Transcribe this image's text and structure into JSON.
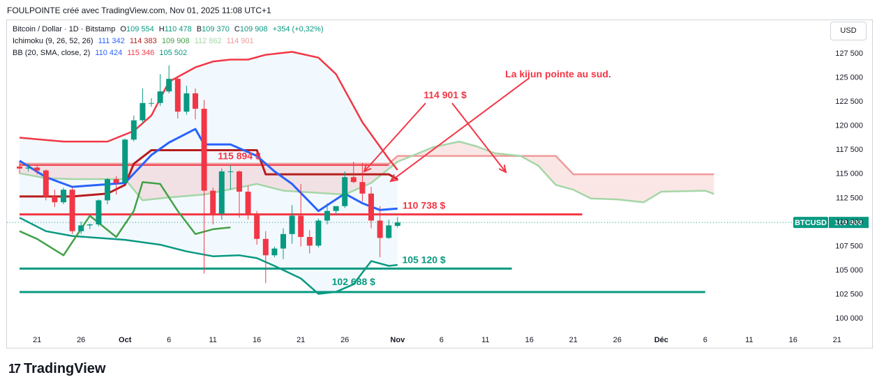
{
  "header": {
    "title": "FOULPOINTE créé avec TradingView.com, Nov 01, 2025 11:08 UTC+1"
  },
  "legend": {
    "symbol": "Bitcoin / Dollar · 1D · Bitstamp",
    "o_label": "O",
    "o_value": "109 554",
    "h_label": "H",
    "h_value": "110 478",
    "b_label": "B",
    "b_value": "109 370",
    "c_label": "C",
    "c_value": "109 908",
    "change": "+354 (+0,32%)",
    "ichimoku_label": "Ichimoku (9, 26, 52, 26)",
    "ichimoku_values": [
      "111 342",
      "114 383",
      "109 908",
      "112 862",
      "114 901"
    ],
    "bb_label": "BB (20, SMA, close, 2)",
    "bb_values": [
      "110 424",
      "115 346",
      "105 502"
    ]
  },
  "currency_button": "USD",
  "brand": {
    "mark": "17",
    "name": "TradingView"
  },
  "colors": {
    "up": "#089981",
    "down": "#f23645",
    "tenkan": "#2962ff",
    "kijun": "#b71c1c",
    "span_a": "#a5d6a7",
    "span_b": "#ef9a9a",
    "bb_upper": "#f23645",
    "bb_lower": "#089981",
    "bb_fill": "#2196f3",
    "chikou": "#43a047",
    "annotation_red": "#f23645",
    "annotation_green": "#089981"
  },
  "chart_data": {
    "type": "candlestick",
    "x_ticks": [
      "21",
      "26",
      "Oct",
      "6",
      "11",
      "16",
      "21",
      "26",
      "Nov",
      "6",
      "11",
      "16",
      "21",
      "26",
      "Déc",
      "6",
      "11",
      "16",
      "21"
    ],
    "y_ticks": [
      "127 500",
      "125 000",
      "122 500",
      "120 000",
      "117 500",
      "115 000",
      "112 500",
      "110 000",
      "107 500",
      "105 000",
      "102 500",
      "100 000"
    ],
    "ylim": [
      99000,
      128500
    ],
    "x_start": "2025-09-19",
    "candles": [
      {
        "date": "2025-09-19",
        "o": 115700,
        "h": 116200,
        "l": 115000,
        "c": 115500
      },
      {
        "date": "2025-09-20",
        "o": 115500,
        "h": 116000,
        "l": 115200,
        "c": 115600
      },
      {
        "date": "2025-09-21",
        "o": 115600,
        "h": 115800,
        "l": 114900,
        "c": 115300
      },
      {
        "date": "2025-09-22",
        "o": 115300,
        "h": 115400,
        "l": 112200,
        "c": 112600
      },
      {
        "date": "2025-09-23",
        "o": 112600,
        "h": 113300,
        "l": 111500,
        "c": 112000
      },
      {
        "date": "2025-09-24",
        "o": 112000,
        "h": 113500,
        "l": 111800,
        "c": 113300
      },
      {
        "date": "2025-09-25",
        "o": 113300,
        "h": 113500,
        "l": 108700,
        "c": 109000
      },
      {
        "date": "2025-09-26",
        "o": 109000,
        "h": 110000,
        "l": 108700,
        "c": 109600
      },
      {
        "date": "2025-09-27",
        "o": 109600,
        "h": 109800,
        "l": 109200,
        "c": 109700
      },
      {
        "date": "2025-09-28",
        "o": 109700,
        "h": 112300,
        "l": 109500,
        "c": 112200
      },
      {
        "date": "2025-09-29",
        "o": 112200,
        "h": 114500,
        "l": 111800,
        "c": 114400
      },
      {
        "date": "2025-09-30",
        "o": 114400,
        "h": 114700,
        "l": 112800,
        "c": 114000
      },
      {
        "date": "2025-10-01",
        "o": 114000,
        "h": 118600,
        "l": 113900,
        "c": 118500
      },
      {
        "date": "2025-10-02",
        "o": 118500,
        "h": 121000,
        "l": 118300,
        "c": 120500
      },
      {
        "date": "2025-10-03",
        "o": 120500,
        "h": 123800,
        "l": 120200,
        "c": 122300
      },
      {
        "date": "2025-10-04",
        "o": 122300,
        "h": 122800,
        "l": 121900,
        "c": 122300
      },
      {
        "date": "2025-10-05",
        "o": 122300,
        "h": 125300,
        "l": 122000,
        "c": 123500
      },
      {
        "date": "2025-10-06",
        "o": 123500,
        "h": 126200,
        "l": 123300,
        "c": 124800
      },
      {
        "date": "2025-10-07",
        "o": 124800,
        "h": 125000,
        "l": 120700,
        "c": 121400
      },
      {
        "date": "2025-10-08",
        "o": 121400,
        "h": 124100,
        "l": 121100,
        "c": 123300
      },
      {
        "date": "2025-10-09",
        "o": 123300,
        "h": 123800,
        "l": 120600,
        "c": 121700
      },
      {
        "date": "2025-10-10",
        "o": 121700,
        "h": 122600,
        "l": 104600,
        "c": 113200
      },
      {
        "date": "2025-10-11",
        "o": 113200,
        "h": 113500,
        "l": 109700,
        "c": 110800
      },
      {
        "date": "2025-10-12",
        "o": 110800,
        "h": 115500,
        "l": 110200,
        "c": 115200
      },
      {
        "date": "2025-10-13",
        "o": 115200,
        "h": 115800,
        "l": 113300,
        "c": 115200
      },
      {
        "date": "2025-10-14",
        "o": 115200,
        "h": 115300,
        "l": 110400,
        "c": 113100
      },
      {
        "date": "2025-10-15",
        "o": 113100,
        "h": 113700,
        "l": 110200,
        "c": 110800
      },
      {
        "date": "2025-10-16",
        "o": 110800,
        "h": 111100,
        "l": 107600,
        "c": 108200
      },
      {
        "date": "2025-10-17",
        "o": 108200,
        "h": 109000,
        "l": 103600,
        "c": 106500
      },
      {
        "date": "2025-10-18",
        "o": 106500,
        "h": 107400,
        "l": 106300,
        "c": 107200
      },
      {
        "date": "2025-10-19",
        "o": 107200,
        "h": 109300,
        "l": 106100,
        "c": 108700
      },
      {
        "date": "2025-10-20",
        "o": 108700,
        "h": 111700,
        "l": 107700,
        "c": 110600
      },
      {
        "date": "2025-10-21",
        "o": 110600,
        "h": 113900,
        "l": 107400,
        "c": 108400
      },
      {
        "date": "2025-10-22",
        "o": 108400,
        "h": 109100,
        "l": 106700,
        "c": 107500
      },
      {
        "date": "2025-10-23",
        "o": 107500,
        "h": 110300,
        "l": 107300,
        "c": 110100
      },
      {
        "date": "2025-10-24",
        "o": 110100,
        "h": 111900,
        "l": 109700,
        "c": 111100
      },
      {
        "date": "2025-10-25",
        "o": 111100,
        "h": 111500,
        "l": 110700,
        "c": 111600
      },
      {
        "date": "2025-10-26",
        "o": 111600,
        "h": 115200,
        "l": 111400,
        "c": 114600
      },
      {
        "date": "2025-10-27",
        "o": 114600,
        "h": 116200,
        "l": 114000,
        "c": 114100
      },
      {
        "date": "2025-10-28",
        "o": 114100,
        "h": 116100,
        "l": 112100,
        "c": 112900
      },
      {
        "date": "2025-10-29",
        "o": 112900,
        "h": 113600,
        "l": 109300,
        "c": 110100
      },
      {
        "date": "2025-10-30",
        "o": 110100,
        "h": 111600,
        "l": 106300,
        "c": 108300
      },
      {
        "date": "2025-10-31",
        "o": 108300,
        "h": 110200,
        "l": 108200,
        "c": 109600
      },
      {
        "date": "2025-11-01",
        "o": 109554,
        "h": 110478,
        "l": 109370,
        "c": 109908
      }
    ],
    "series": [
      {
        "name": "Conversion",
        "role": "tenkan",
        "points": [
          [
            "2025-09-19",
            116300
          ],
          [
            "2025-09-22",
            114600
          ],
          [
            "2025-09-25",
            113600
          ],
          [
            "2025-10-01",
            114000
          ],
          [
            "2025-10-04",
            116900
          ],
          [
            "2025-10-06",
            118200
          ],
          [
            "2025-10-09",
            119600
          ],
          [
            "2025-10-10",
            118000
          ],
          [
            "2025-10-13",
            118000
          ],
          [
            "2025-10-16",
            116800
          ],
          [
            "2025-10-18",
            115200
          ],
          [
            "2025-10-20",
            113900
          ],
          [
            "2025-10-23",
            111100
          ],
          [
            "2025-10-26",
            112900
          ],
          [
            "2025-10-28",
            111900
          ],
          [
            "2025-10-30",
            111200
          ],
          [
            "2025-11-01",
            111342
          ]
        ]
      },
      {
        "name": "Base Line",
        "role": "kijun",
        "points": [
          [
            "2025-09-19",
            112600
          ],
          [
            "2025-09-25",
            112600
          ],
          [
            "2025-09-29",
            112900
          ],
          [
            "2025-10-01",
            113800
          ],
          [
            "2025-10-02",
            116000
          ],
          [
            "2025-10-04",
            117400
          ],
          [
            "2025-10-16",
            117400
          ],
          [
            "2025-10-17",
            114900
          ],
          [
            "2025-10-31",
            114900
          ],
          [
            "2025-11-01",
            114383
          ]
        ]
      },
      {
        "name": "Leading Span A",
        "role": "span_a",
        "points": [
          [
            "2025-09-19",
            115000
          ],
          [
            "2025-09-22",
            114500
          ],
          [
            "2025-09-25",
            114400
          ],
          [
            "2025-10-01",
            114400
          ],
          [
            "2025-10-03",
            112200
          ],
          [
            "2025-10-06",
            112500
          ],
          [
            "2025-10-10",
            112800
          ],
          [
            "2025-10-16",
            113900
          ],
          [
            "2025-10-19",
            113200
          ],
          [
            "2025-10-26",
            112800
          ],
          [
            "2025-10-29",
            114000
          ],
          [
            "2025-11-01",
            116200
          ],
          [
            "2025-11-05",
            117700
          ],
          [
            "2025-11-08",
            118300
          ],
          [
            "2025-11-10",
            117800
          ],
          [
            "2025-11-12",
            117100
          ],
          [
            "2025-11-15",
            116800
          ],
          [
            "2025-11-17",
            115800
          ],
          [
            "2025-11-19",
            113800
          ],
          [
            "2025-11-21",
            113300
          ],
          [
            "2025-11-23",
            112400
          ],
          [
            "2025-11-26",
            112300
          ],
          [
            "2025-11-29",
            112000
          ],
          [
            "2025-12-01",
            113100
          ],
          [
            "2025-12-06",
            113200
          ],
          [
            "2025-12-07",
            112862
          ]
        ]
      },
      {
        "name": "Leading Span B",
        "role": "span_b",
        "points": [
          [
            "2025-09-19",
            116000
          ],
          [
            "2025-10-31",
            116000
          ],
          [
            "2025-11-01",
            116800
          ],
          [
            "2025-11-19",
            116800
          ],
          [
            "2025-11-21",
            114901
          ],
          [
            "2025-12-07",
            114901
          ]
        ]
      },
      {
        "name": "Lagging Span",
        "role": "chikou",
        "points": [
          [
            "2025-09-19",
            109000
          ],
          [
            "2025-09-21",
            108200
          ],
          [
            "2025-09-24",
            106500
          ],
          [
            "2025-09-27",
            110600
          ],
          [
            "2025-09-30",
            108400
          ],
          [
            "2025-10-02",
            111100
          ],
          [
            "2025-10-03",
            114100
          ],
          [
            "2025-10-05",
            113900
          ],
          [
            "2025-10-07",
            111100
          ],
          [
            "2025-10-09",
            108700
          ],
          [
            "2025-10-11",
            109200
          ],
          [
            "2025-10-13",
            109400
          ]
        ]
      },
      {
        "name": "Upper",
        "role": "bb_upper",
        "points": [
          [
            "2025-09-19",
            118700
          ],
          [
            "2025-09-24",
            118300
          ],
          [
            "2025-09-29",
            118300
          ],
          [
            "2025-10-02",
            119400
          ],
          [
            "2025-10-04",
            121000
          ],
          [
            "2025-10-06",
            124500
          ],
          [
            "2025-10-09",
            126000
          ],
          [
            "2025-10-11",
            126600
          ],
          [
            "2025-10-13",
            126800
          ],
          [
            "2025-10-15",
            126800
          ],
          [
            "2025-10-17",
            127300
          ],
          [
            "2025-10-20",
            127600
          ],
          [
            "2025-10-23",
            127000
          ],
          [
            "2025-10-25",
            125300
          ],
          [
            "2025-10-28",
            120300
          ],
          [
            "2025-10-31",
            116500
          ],
          [
            "2025-11-01",
            115346
          ]
        ]
      },
      {
        "name": "Basis",
        "role": "bb_basis",
        "points": []
      },
      {
        "name": "Lower",
        "role": "bb_lower",
        "points": [
          [
            "2025-09-19",
            110400
          ],
          [
            "2025-09-22",
            109000
          ],
          [
            "2025-09-25",
            108500
          ],
          [
            "2025-09-28",
            108300
          ],
          [
            "2025-10-01",
            108100
          ],
          [
            "2025-10-05",
            107600
          ],
          [
            "2025-10-08",
            106900
          ],
          [
            "2025-10-11",
            106400
          ],
          [
            "2025-10-14",
            106500
          ],
          [
            "2025-10-16",
            106200
          ],
          [
            "2025-10-18",
            105400
          ],
          [
            "2025-10-21",
            104100
          ],
          [
            "2025-10-23",
            102500
          ],
          [
            "2025-10-25",
            102700
          ],
          [
            "2025-10-27",
            103500
          ],
          [
            "2025-10-29",
            105900
          ],
          [
            "2025-10-31",
            105400
          ],
          [
            "2025-11-01",
            105502
          ]
        ]
      }
    ],
    "levels": [
      {
        "label": "115 894 $",
        "value": 115894,
        "color": "red",
        "from": "2025-09-19",
        "to": "2025-10-31"
      },
      {
        "label": "110 738 $",
        "value": 110738,
        "color": "red",
        "from": "2025-09-19",
        "to": "2025-11-22"
      },
      {
        "label": "105 120 $",
        "value": 105120,
        "color": "green",
        "from": "2025-09-19",
        "to": "2025-11-14"
      },
      {
        "label": "102 688 $",
        "value": 102688,
        "color": "green",
        "from": "2025-09-19",
        "to": "2025-12-06"
      }
    ],
    "annotations": {
      "kijun_note": "La kijun pointe au sud.",
      "span_b_value": "114 901 $"
    },
    "price_tag": {
      "symbol": "BTCUSD",
      "value": "109 908",
      "price": 109908
    },
    "grid": false
  }
}
